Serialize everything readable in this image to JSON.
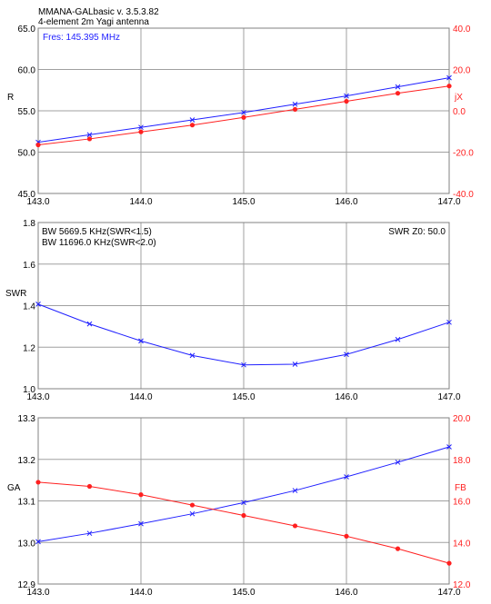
{
  "header": {
    "app_title": "MMANA-GALbasic   v. 3.5.3.82",
    "subtitle": "4-element 2m Yagi antenna"
  },
  "colors": {
    "blue": "#2020ff",
    "red": "#ff2020",
    "grid": "#a0a0a0",
    "axis_text": "#000000"
  },
  "chart_data": [
    {
      "type": "line",
      "id": "impedance",
      "annotations": {
        "fres": "Fres: 145.395 MHz"
      },
      "xlim": [
        143.0,
        147.0
      ],
      "x_ticks": [
        "143.0",
        "144.0",
        "145.0",
        "146.0",
        "147.0"
      ],
      "left_axis": {
        "label": "R",
        "lim": [
          45.0,
          65.0
        ],
        "ticks": [
          "45.0",
          "50.0",
          "55.0",
          "60.0",
          "65.0"
        ]
      },
      "right_axis": {
        "label": "jX",
        "lim": [
          -40.0,
          40.0
        ],
        "ticks": [
          "-40.0",
          "-20.0",
          "0.0",
          "20.0",
          "40.0"
        ]
      },
      "series": [
        {
          "axis": "left",
          "marker": "x",
          "color": "#2020ff",
          "x": [
            143.0,
            143.5,
            144.0,
            144.5,
            145.0,
            145.5,
            146.0,
            146.5,
            147.0
          ],
          "y": [
            51.2,
            52.1,
            53.0,
            53.9,
            54.8,
            55.8,
            56.8,
            57.9,
            59.0
          ]
        },
        {
          "axis": "right",
          "marker": "dot",
          "color": "#ff2020",
          "x": [
            143.0,
            143.5,
            144.0,
            144.5,
            145.0,
            145.5,
            146.0,
            146.5,
            147.0
          ],
          "y": [
            -16.5,
            -13.6,
            -10.2,
            -6.9,
            -3.2,
            0.7,
            4.6,
            8.5,
            12.0
          ]
        }
      ]
    },
    {
      "type": "line",
      "id": "swr",
      "annotations": {
        "bw1": "BW 5669.5 KHz(SWR<1.5)",
        "bw2": "BW 11696.0 KHz(SWR<2.0)",
        "z0": "SWR Z0: 50.0"
      },
      "xlim": [
        143.0,
        147.0
      ],
      "x_ticks": [
        "143.0",
        "144.0",
        "145.0",
        "146.0",
        "147.0"
      ],
      "left_axis": {
        "label": "SWR",
        "lim": [
          1.0,
          1.8
        ],
        "ticks": [
          "1.0",
          "1.2",
          "1.4",
          "1.6",
          "1.8"
        ]
      },
      "series": [
        {
          "axis": "left",
          "marker": "x",
          "color": "#2020ff",
          "x": [
            143.0,
            143.5,
            144.0,
            144.5,
            145.0,
            145.5,
            146.0,
            146.5,
            147.0
          ],
          "y": [
            1.407,
            1.312,
            1.23,
            1.16,
            1.115,
            1.118,
            1.165,
            1.237,
            1.32
          ]
        }
      ]
    },
    {
      "type": "line",
      "id": "gain_fb",
      "xlim": [
        143.0,
        147.0
      ],
      "x_ticks": [
        "143.0",
        "144.0",
        "145.0",
        "146.0",
        "147.0"
      ],
      "left_axis": {
        "label": "GA",
        "lim": [
          12.9,
          13.3
        ],
        "ticks": [
          "12.9",
          "13.0",
          "13.1",
          "13.2",
          "13.3"
        ]
      },
      "right_axis": {
        "label": "FB",
        "lim": [
          12.0,
          20.0
        ],
        "ticks": [
          "12.0",
          "14.0",
          "16.0",
          "18.0",
          "20.0"
        ]
      },
      "series": [
        {
          "axis": "left",
          "marker": "x",
          "color": "#2020ff",
          "x": [
            143.0,
            143.5,
            144.0,
            144.5,
            145.0,
            145.5,
            146.0,
            146.5,
            147.0
          ],
          "y": [
            13.002,
            13.022,
            13.045,
            13.069,
            13.096,
            13.125,
            13.158,
            13.193,
            13.23
          ]
        },
        {
          "axis": "right",
          "marker": "dot",
          "color": "#ff2020",
          "x": [
            143.0,
            143.5,
            144.0,
            144.5,
            145.0,
            145.5,
            146.0,
            146.5,
            147.0
          ],
          "y": [
            16.9,
            16.7,
            16.3,
            15.8,
            15.3,
            14.8,
            14.3,
            13.7,
            13.0
          ]
        }
      ]
    }
  ]
}
